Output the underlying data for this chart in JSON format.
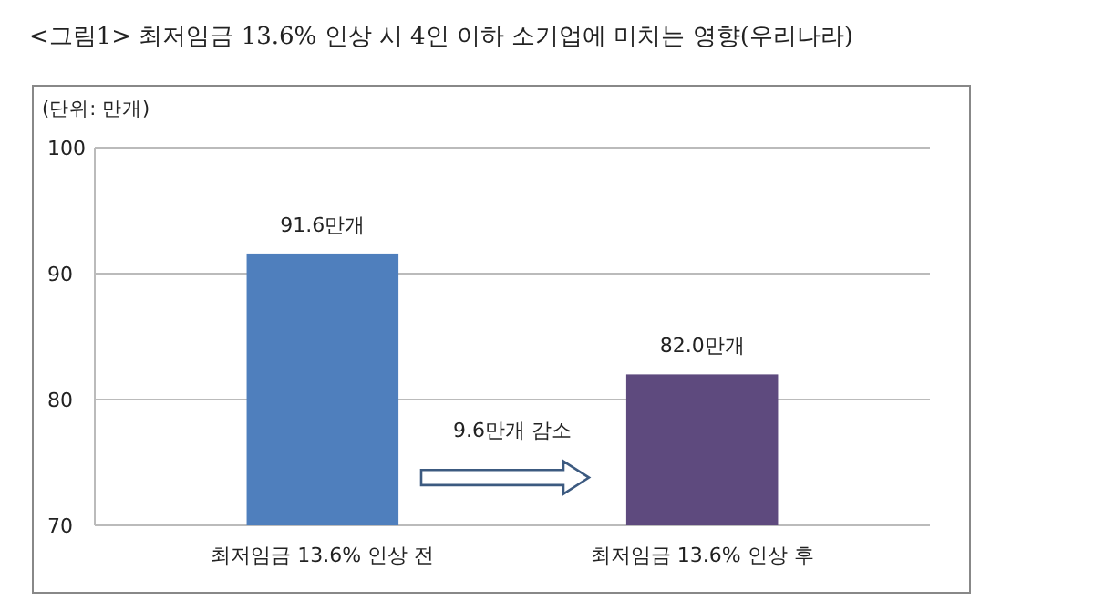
{
  "chart_data": {
    "type": "bar",
    "title": "<그림1> 최저임금 13.6% 인상 시 4인 이하 소기업에 미치는 영향(우리나라)",
    "ylabel": "(단위: 만개)",
    "categories": [
      "최저임금 13.6% 인상 전",
      "최저임금 13.6% 인상 후"
    ],
    "values": [
      91.6,
      82.0
    ],
    "colors": [
      "#4f7fbd",
      "#5e4a7e"
    ],
    "value_labels": [
      "91.6만개",
      "82.0만개"
    ],
    "ylim": [
      70,
      100
    ],
    "yticks": [
      70,
      80,
      90,
      100
    ],
    "grid": "y",
    "annotations": [
      "9.6만개 감소"
    ]
  }
}
